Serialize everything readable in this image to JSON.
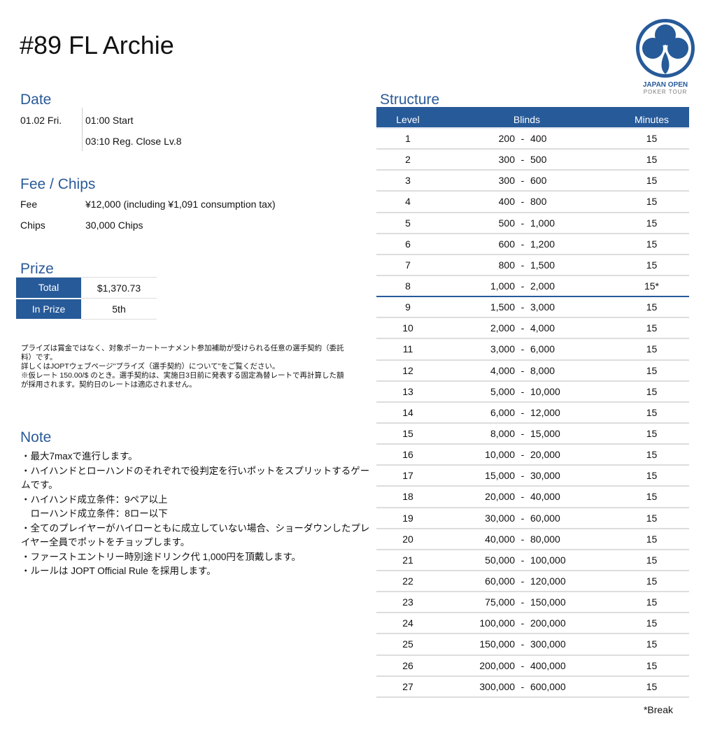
{
  "title": "#89 FL Archie",
  "logo": {
    "line1": "JAPAN OPEN",
    "line2": "POKER TOUR",
    "color": "#275a99"
  },
  "date": {
    "heading": "Date",
    "day": "01.02 Fri.",
    "start": "01:00 Start",
    "reg_close": "03:10 Reg. Close Lv.8"
  },
  "fee": {
    "heading": "Fee / Chips",
    "fee_label": "Fee",
    "fee_value": "¥12,000 (including ¥1,091 consumption tax)",
    "chips_label": "Chips",
    "chips_value": "30,000 Chips"
  },
  "prize": {
    "heading": "Prize",
    "total_label": "Total",
    "total_value": "$1,370.73",
    "inprize_label": "In Prize",
    "inprize_value": "5th",
    "notes": [
      "プライズは賞金ではなく、対象ポーカートーナメント参加補助が受けられる任意の選手契約（委託料）です。",
      "詳しくはJOPTウェブページ\"プライズ（選手契約）について\"をご覧ください。",
      "※仮レート 150.00/$ のとき。選手契約は、実施日3日前に発表する固定為替レートで再計算した額が採用されます。契約日のレートは適応されません。"
    ]
  },
  "note": {
    "heading": "Note",
    "lines": [
      "・最大7maxで進行します。",
      "・ハイハンドとローハンドのそれぞれで役判定を行いポットをスプリットするゲームです。",
      "・ハイハンド成立条件：9ペア以上",
      "　ローハンド成立条件：8ロー以下",
      "・全てのプレイヤーがハイローともに成立していない場合、ショーダウンしたプレイヤー全員でポットをチョップします。",
      "・ファーストエントリー時別途ドリンク代 1,000円を頂戴します。",
      "・ルールは JOPT Official Rule を採用します。"
    ]
  },
  "structure": {
    "heading": "Structure",
    "columns": [
      "Level",
      "Blinds",
      "Minutes"
    ],
    "footnote": "*Break",
    "rows": [
      [
        "1",
        "200",
        "400",
        "15"
      ],
      [
        "2",
        "300",
        "500",
        "15"
      ],
      [
        "3",
        "300",
        "600",
        "15"
      ],
      [
        "4",
        "400",
        "800",
        "15"
      ],
      [
        "5",
        "500",
        "1,000",
        "15"
      ],
      [
        "6",
        "600",
        "1,200",
        "15"
      ],
      [
        "7",
        "800",
        "1,500",
        "15"
      ],
      [
        "8",
        "1,000",
        "2,000",
        "15*"
      ],
      [
        "9",
        "1,500",
        "3,000",
        "15"
      ],
      [
        "10",
        "2,000",
        "4,000",
        "15"
      ],
      [
        "11",
        "3,000",
        "6,000",
        "15"
      ],
      [
        "12",
        "4,000",
        "8,000",
        "15"
      ],
      [
        "13",
        "5,000",
        "10,000",
        "15"
      ],
      [
        "14",
        "6,000",
        "12,000",
        "15"
      ],
      [
        "15",
        "8,000",
        "15,000",
        "15"
      ],
      [
        "16",
        "10,000",
        "20,000",
        "15"
      ],
      [
        "17",
        "15,000",
        "30,000",
        "15"
      ],
      [
        "18",
        "20,000",
        "40,000",
        "15"
      ],
      [
        "19",
        "30,000",
        "60,000",
        "15"
      ],
      [
        "20",
        "40,000",
        "80,000",
        "15"
      ],
      [
        "21",
        "50,000",
        "100,000",
        "15"
      ],
      [
        "22",
        "60,000",
        "120,000",
        "15"
      ],
      [
        "23",
        "75,000",
        "150,000",
        "15"
      ],
      [
        "24",
        "100,000",
        "200,000",
        "15"
      ],
      [
        "25",
        "150,000",
        "300,000",
        "15"
      ],
      [
        "26",
        "200,000",
        "400,000",
        "15"
      ],
      [
        "27",
        "300,000",
        "600,000",
        "15"
      ]
    ]
  }
}
